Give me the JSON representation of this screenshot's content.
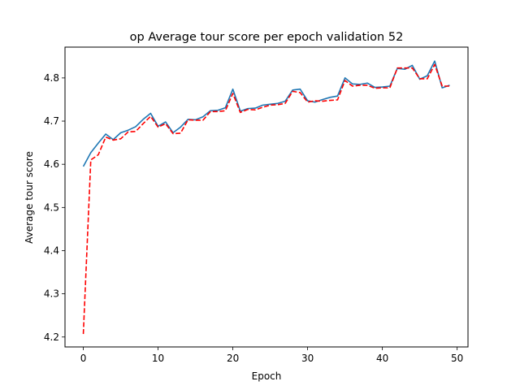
{
  "chart_data": {
    "type": "line",
    "title": "op Average tour score per epoch validation 52",
    "xlabel": "Epoch",
    "ylabel": "Average tour score",
    "xlim": [
      -2.45,
      51.45
    ],
    "ylim": [
      4.177,
      4.8713
    ],
    "xticks": [
      0,
      10,
      20,
      30,
      40,
      50
    ],
    "yticks": [
      4.2,
      4.3,
      4.4,
      4.5,
      4.6,
      4.7,
      4.8
    ],
    "grid": false,
    "x": [
      0,
      1,
      2,
      3,
      4,
      5,
      6,
      7,
      8,
      9,
      10,
      11,
      12,
      13,
      14,
      15,
      16,
      17,
      18,
      19,
      20,
      21,
      22,
      23,
      24,
      25,
      26,
      27,
      28,
      29,
      30,
      31,
      32,
      33,
      34,
      35,
      36,
      37,
      38,
      39,
      40,
      41,
      42,
      43,
      44,
      45,
      46,
      47,
      48,
      49
    ],
    "series": [
      {
        "color": "#1f77b4",
        "style": "solid",
        "values": [
          4.595,
          4.627,
          4.649,
          4.67,
          4.657,
          4.673,
          4.679,
          4.687,
          4.704,
          4.718,
          4.688,
          4.698,
          4.673,
          4.686,
          4.704,
          4.703,
          4.71,
          4.724,
          4.725,
          4.731,
          4.774,
          4.723,
          4.729,
          4.73,
          4.737,
          4.739,
          4.741,
          4.746,
          4.772,
          4.774,
          4.747,
          4.744,
          4.75,
          4.755,
          4.758,
          4.8,
          4.786,
          4.785,
          4.788,
          4.778,
          4.779,
          4.781,
          4.822,
          4.82,
          4.829,
          4.797,
          4.805,
          4.839,
          4.777,
          4.783
        ]
      },
      {
        "color": "#ff0000",
        "style": "dashed",
        "values": [
          4.207,
          4.61,
          4.622,
          4.663,
          4.656,
          4.659,
          4.675,
          4.676,
          4.694,
          4.711,
          4.686,
          4.694,
          4.671,
          4.672,
          4.703,
          4.702,
          4.702,
          4.722,
          4.722,
          4.724,
          4.764,
          4.72,
          4.727,
          4.726,
          4.732,
          4.737,
          4.738,
          4.741,
          4.769,
          4.766,
          4.744,
          4.747,
          4.746,
          4.748,
          4.749,
          4.794,
          4.781,
          4.783,
          4.783,
          4.776,
          4.777,
          4.777,
          4.823,
          4.823,
          4.823,
          4.798,
          4.798,
          4.831,
          4.781,
          4.781
        ]
      }
    ]
  }
}
